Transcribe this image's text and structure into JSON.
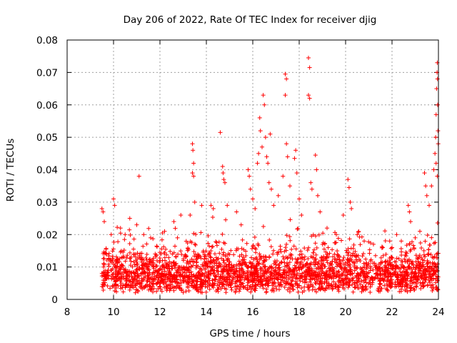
{
  "chart_data": {
    "type": "scatter",
    "title": "Day 206 of 2022, Rate Of TEC Index for receiver djig",
    "xlabel": "GPS time / hours",
    "ylabel": "ROTI / TECUs",
    "xlim": [
      8,
      24
    ],
    "ylim": [
      0,
      0.08
    ],
    "x_ticks": [
      "8",
      "10",
      "12",
      "14",
      "16",
      "18",
      "20",
      "22",
      "24"
    ],
    "y_ticks": [
      "0",
      "0.01",
      "0.02",
      "0.03",
      "0.04",
      "0.05",
      "0.06",
      "0.07",
      "0.08"
    ],
    "grid": true,
    "marker": "plus",
    "color": "#ff0000",
    "series": [
      {
        "name": "ROTI",
        "points": [
          [
            9.5,
            0.028
          ],
          [
            9.55,
            0.027
          ],
          [
            9.6,
            0.024
          ],
          [
            9.9,
            0.02
          ],
          [
            10.0,
            0.031
          ],
          [
            10.05,
            0.029
          ],
          [
            10.3,
            0.022
          ],
          [
            10.5,
            0.02
          ],
          [
            10.7,
            0.025
          ],
          [
            11.0,
            0.023
          ],
          [
            11.1,
            0.038
          ],
          [
            11.3,
            0.02
          ],
          [
            11.6,
            0.019
          ],
          [
            12.2,
            0.021
          ],
          [
            12.6,
            0.024
          ],
          [
            12.9,
            0.026
          ],
          [
            13.3,
            0.026
          ],
          [
            13.4,
            0.048
          ],
          [
            13.42,
            0.046
          ],
          [
            13.45,
            0.042
          ],
          [
            13.4,
            0.039
          ],
          [
            13.45,
            0.038
          ],
          [
            13.5,
            0.03
          ],
          [
            13.8,
            0.029
          ],
          [
            14.2,
            0.029
          ],
          [
            14.3,
            0.028
          ],
          [
            14.6,
            0.0515
          ],
          [
            14.7,
            0.041
          ],
          [
            14.72,
            0.039
          ],
          [
            14.75,
            0.037
          ],
          [
            14.8,
            0.036
          ],
          [
            14.9,
            0.029
          ],
          [
            15.3,
            0.027
          ],
          [
            15.5,
            0.023
          ],
          [
            15.8,
            0.04
          ],
          [
            15.85,
            0.038
          ],
          [
            15.9,
            0.034
          ],
          [
            16.0,
            0.031
          ],
          [
            16.1,
            0.028
          ],
          [
            16.2,
            0.042
          ],
          [
            16.25,
            0.045
          ],
          [
            16.3,
            0.056
          ],
          [
            16.33,
            0.052
          ],
          [
            16.4,
            0.047
          ],
          [
            16.45,
            0.063
          ],
          [
            16.5,
            0.06
          ],
          [
            16.55,
            0.05
          ],
          [
            16.6,
            0.044
          ],
          [
            16.65,
            0.042
          ],
          [
            16.7,
            0.036
          ],
          [
            16.75,
            0.051
          ],
          [
            16.8,
            0.034
          ],
          [
            16.9,
            0.029
          ],
          [
            17.1,
            0.032
          ],
          [
            17.3,
            0.038
          ],
          [
            17.4,
            0.0695
          ],
          [
            17.45,
            0.068
          ],
          [
            17.4,
            0.063
          ],
          [
            17.45,
            0.048
          ],
          [
            17.5,
            0.044
          ],
          [
            17.6,
            0.035
          ],
          [
            17.8,
            0.0435
          ],
          [
            17.85,
            0.046
          ],
          [
            17.9,
            0.039
          ],
          [
            18.0,
            0.031
          ],
          [
            18.1,
            0.026
          ],
          [
            18.4,
            0.0745
          ],
          [
            18.45,
            0.0715
          ],
          [
            18.4,
            0.063
          ],
          [
            18.45,
            0.062
          ],
          [
            18.5,
            0.036
          ],
          [
            18.55,
            0.034
          ],
          [
            18.7,
            0.0445
          ],
          [
            18.75,
            0.04
          ],
          [
            18.8,
            0.032
          ],
          [
            18.9,
            0.027
          ],
          [
            19.2,
            0.022
          ],
          [
            19.6,
            0.02
          ],
          [
            19.9,
            0.026
          ],
          [
            20.1,
            0.037
          ],
          [
            20.15,
            0.0345
          ],
          [
            20.2,
            0.03
          ],
          [
            20.25,
            0.028
          ],
          [
            20.5,
            0.02
          ],
          [
            20.8,
            0.018
          ],
          [
            21.2,
            0.017
          ],
          [
            21.6,
            0.016
          ],
          [
            21.9,
            0.018
          ],
          [
            22.2,
            0.02
          ],
          [
            22.4,
            0.018
          ],
          [
            22.7,
            0.029
          ],
          [
            22.75,
            0.027
          ],
          [
            22.8,
            0.024
          ],
          [
            23.0,
            0.019
          ],
          [
            23.2,
            0.021
          ],
          [
            23.4,
            0.039
          ],
          [
            23.45,
            0.035
          ],
          [
            23.5,
            0.032
          ],
          [
            23.6,
            0.029
          ],
          [
            23.7,
            0.035
          ],
          [
            23.8,
            0.04
          ],
          [
            23.85,
            0.045
          ],
          [
            23.88,
            0.05
          ],
          [
            23.9,
            0.057
          ],
          [
            23.92,
            0.065
          ],
          [
            23.94,
            0.07
          ],
          [
            23.95,
            0.073
          ],
          [
            23.96,
            0.068
          ],
          [
            23.97,
            0.06
          ],
          [
            23.98,
            0.052
          ],
          [
            23.99,
            0.048
          ],
          [
            23.9,
            0.042
          ],
          [
            23.95,
            0.038
          ]
        ],
        "dense_band": {
          "x_range": [
            9.5,
            24.0
          ],
          "y_range": [
            0.002,
            0.016
          ],
          "note": "continuous dense cloud of samples along the bottom of the plot"
        }
      }
    ]
  }
}
